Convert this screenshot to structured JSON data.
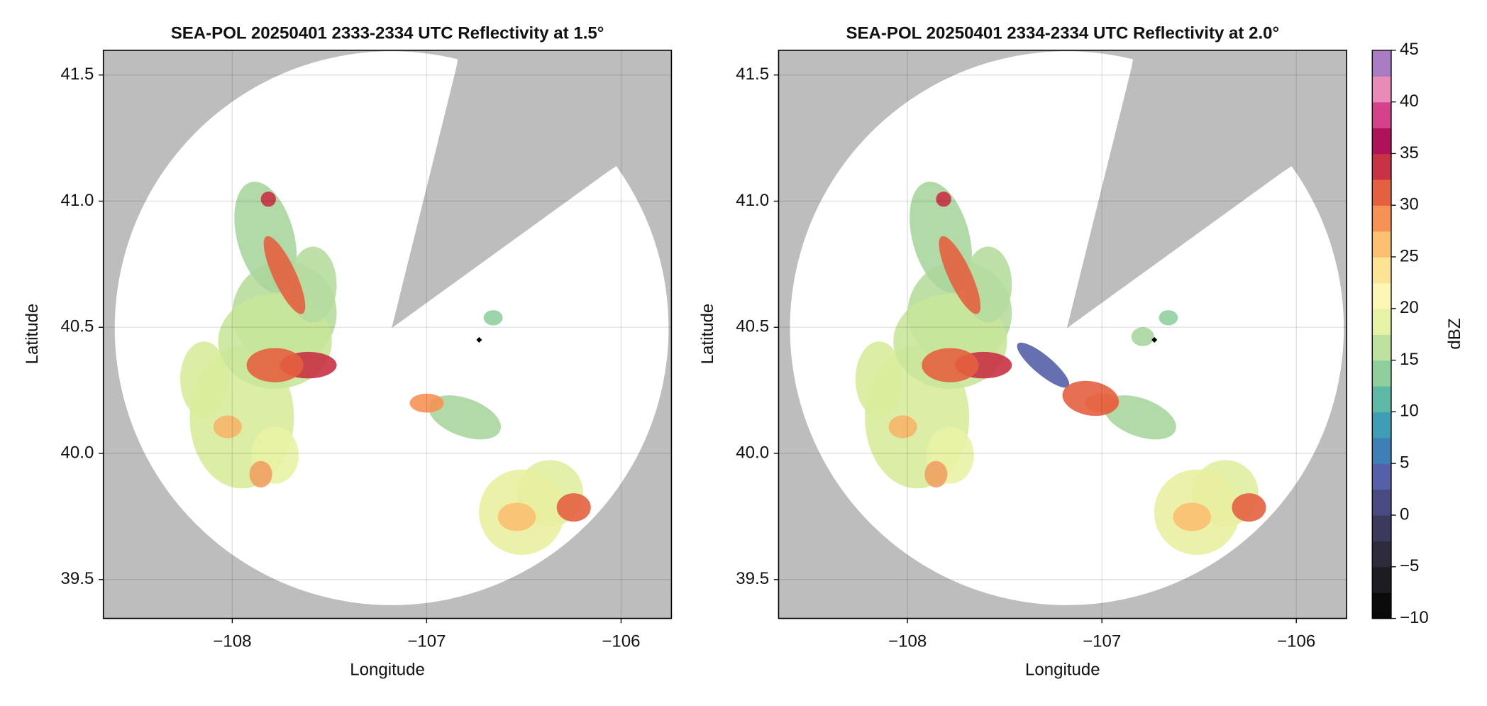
{
  "chart_data": [
    {
      "type": "radar",
      "title": "SEA-POL 20250401 2333-2334 UTC Reflectivity at 1.5°",
      "xlabel": "Longitude",
      "ylabel": "Latitude",
      "xlim": [
        -108.663,
        -105.741
      ],
      "ylim": [
        39.346,
        41.598
      ],
      "xticks": [
        {
          "value": -108,
          "label": "−108"
        },
        {
          "value": -107,
          "label": "−107"
        },
        {
          "value": -106,
          "label": "−106"
        }
      ],
      "yticks": [
        39.5,
        {
          "value": 40.0,
          "label": "40.0"
        },
        40.5,
        {
          "value": 41.0,
          "label": "41.0"
        },
        41.5
      ],
      "grid": true,
      "marker": {
        "x": -106.73,
        "y": 40.45
      }
    },
    {
      "type": "radar",
      "title": "SEA-POL 20250401 2334-2334 UTC Reflectivity at 2.0°",
      "xlabel": "Longitude",
      "ylabel": "Latitude",
      "xlim": [
        -108.663,
        -105.741
      ],
      "ylim": [
        39.346,
        41.598
      ],
      "xticks": [
        {
          "value": -108,
          "label": "−108"
        },
        {
          "value": -107,
          "label": "−107"
        },
        {
          "value": -106,
          "label": "−106"
        }
      ],
      "yticks": [
        39.5,
        {
          "value": 40.0,
          "label": "40.0"
        },
        40.5,
        {
          "value": 41.0,
          "label": "41.0"
        },
        41.5
      ],
      "grid": true,
      "marker": {
        "x": -106.73,
        "y": 40.45
      },
      "colorbar": {
        "label": "dBZ",
        "lim": [
          -10,
          45
        ],
        "ticks": [
          {
            "value": -10,
            "label": "−10"
          },
          {
            "value": -5,
            "label": "−5"
          },
          0,
          5,
          10,
          15,
          20,
          25,
          30,
          35,
          40,
          45
        ],
        "colors": [
          "#0a0a0a",
          "#1c1c22",
          "#2d2b3c",
          "#3c3a5c",
          "#4a4a82",
          "#5560a8",
          "#3f7fb8",
          "#3d9eb6",
          "#5db8a6",
          "#8fcf9e",
          "#bde2a0",
          "#e6f3a5",
          "#fbf6b2",
          "#fde394",
          "#fbbf6f",
          "#f69254",
          "#e4603f",
          "#c93144",
          "#b0115b",
          "#d6418c",
          "#e98ab8",
          "#a77cc0"
        ]
      }
    }
  ]
}
